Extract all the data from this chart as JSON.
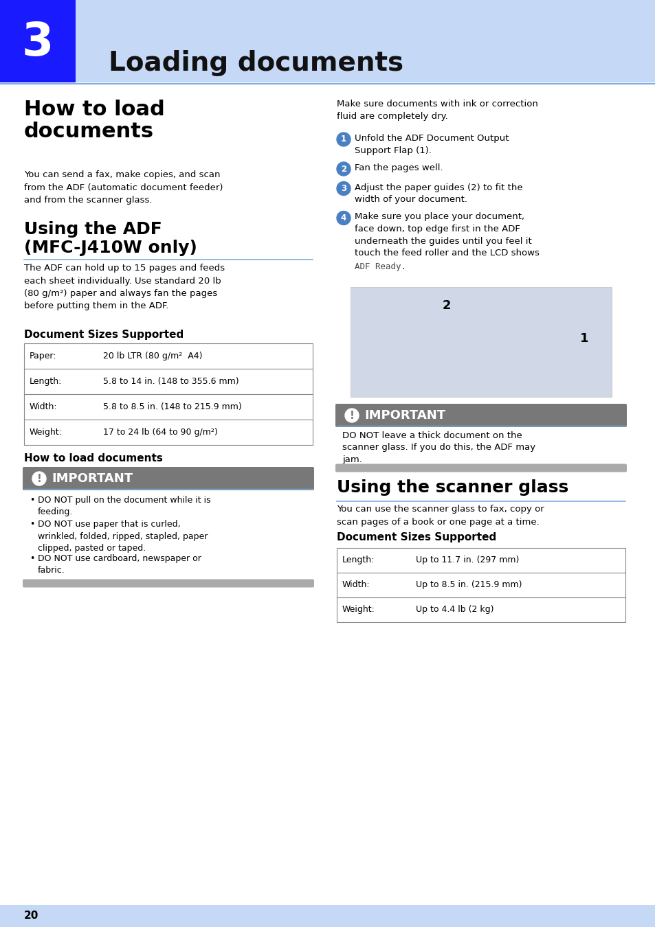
{
  "page_bg": "#ffffff",
  "header_bg_light": "#c5d8f5",
  "header_bg_blue": "#1a1aff",
  "chapter_num": "3",
  "chapter_title": "Loading documents",
  "section1_title": "How to load\ndocuments",
  "section1_body": "You can send a fax, make copies, and scan\nfrom the ADF (automatic document feeder)\nand from the scanner glass.",
  "section2_title": "Using the ADF\n(MFC-J410W only)",
  "section2_body": "The ADF can hold up to 15 pages and feeds\neach sheet individually. Use standard 20 lb\n(80 g/m²) paper and always fan the pages\nbefore putting them in the ADF.",
  "doc_sizes_title": "Document Sizes Supported",
  "adf_table": [
    [
      "Paper:",
      "20 lb LTR (80 g/m²  A4)"
    ],
    [
      "Length:",
      "5.8 to 14 in. (148 to 355.6 mm)"
    ],
    [
      "Width:",
      "5.8 to 8.5 in. (148 to 215.9 mm)"
    ],
    [
      "Weight:",
      "17 to 24 lb (64 to 90 g/m²)"
    ]
  ],
  "how_load_title": "How to load documents",
  "important_label": "IMPORTANT",
  "important_bullets_left": [
    "DO NOT pull on the document while it is\nfeeding.",
    "DO NOT use paper that is curled,\nwrinkled, folded, ripped, stapled, paper\nclipped, pasted or taped.",
    "DO NOT use cardboard, newspaper or\nfabric."
  ],
  "right_intro": "Make sure documents with ink or correction\nfluid are completely dry.",
  "right_steps": [
    [
      "Unfold the ADF Document Output\nSupport Flap (1).",
      false
    ],
    [
      "Fan the pages well.",
      false
    ],
    [
      "Adjust the paper guides (2) to fit the\nwidth of your document.",
      false
    ],
    [
      "Make sure you place your document,\nface down, top edge first in the ADF\nunderneath the guides until you feel it\ntouch the feed roller and the LCD shows\nADF Ready.",
      true
    ]
  ],
  "right_important": "DO NOT leave a thick document on the\nscanner glass. If you do this, the ADF may\njam.",
  "scanner_title": "Using the scanner glass",
  "scanner_body": "You can use the scanner glass to fax, copy or\nscan pages of a book or one page at a time.",
  "scanner_doc_sizes_title": "Document Sizes Supported",
  "scanner_table": [
    [
      "Length:",
      "Up to 11.7 in. (297 mm)"
    ],
    [
      "Width:",
      "Up to 8.5 in. (215.9 mm)"
    ],
    [
      "Weight:",
      "Up to 4.4 lb (2 kg)"
    ]
  ],
  "page_num": "20",
  "footer_bg": "#c5d8f5",
  "gray_banner": "#787878",
  "step_circle_color": "#4a7fc1",
  "table_border": "#888888",
  "text_color": "#000000",
  "blue_rule": "#7aaee8",
  "mono_color": "#444444"
}
